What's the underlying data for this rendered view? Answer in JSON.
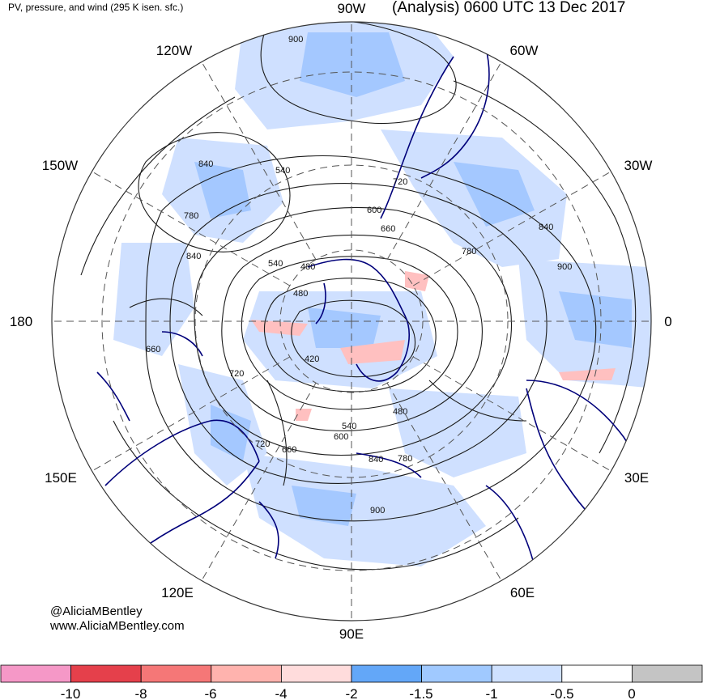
{
  "header": {
    "subtitle": "PV, pressure, and wind (295 K isen. sfc.)",
    "title": "(Analysis) 0600 UTC 13 Dec 2017"
  },
  "credits": {
    "handle": "@AliciaMBentley",
    "website": "www.AliciaMBentley.com"
  },
  "map": {
    "projection": "north-polar-stereographic",
    "longitude_labels": [
      {
        "text": "90W",
        "lon": -90
      },
      {
        "text": "60W",
        "lon": -60
      },
      {
        "text": "30W",
        "lon": -30
      },
      {
        "text": "0",
        "lon": 0
      },
      {
        "text": "30E",
        "lon": 30
      },
      {
        "text": "60E",
        "lon": 60
      },
      {
        "text": "90E",
        "lon": 90
      },
      {
        "text": "120E",
        "lon": 120
      },
      {
        "text": "150E",
        "lon": 150
      },
      {
        "text": "180",
        "lon": 180
      },
      {
        "text": "150W",
        "lon": -150
      },
      {
        "text": "120W",
        "lon": -120
      }
    ],
    "contour_labels": [
      "900",
      "840",
      "780",
      "720",
      "660",
      "600",
      "540",
      "480",
      "420",
      "480",
      "540",
      "600",
      "660",
      "720",
      "780",
      "840",
      "900",
      "840",
      "780",
      "720",
      "840",
      "900",
      "480",
      "540",
      "660"
    ],
    "colors": {
      "coastline": "#00007a",
      "graticule": "#555555",
      "contour": "#1a1a1a",
      "pv_light": "#cfe0ff",
      "pv_mid": "#a4c8ff",
      "pv_strong": "#6aaeff",
      "pv_neg": "#ffc0c0"
    }
  },
  "colorbar": {
    "ticks": [
      "-10",
      "-8",
      "-6",
      "-4",
      "-2",
      "-1.5",
      "-1",
      "-0.5",
      "0"
    ],
    "colors": [
      "#f598c7",
      "#e5404b",
      "#f57777",
      "#ffb3ae",
      "#ffdcdc",
      "#63a7f8",
      "#a0c9ff",
      "#cfe1ff",
      "#ffffff",
      "#c4c4c4"
    ]
  }
}
